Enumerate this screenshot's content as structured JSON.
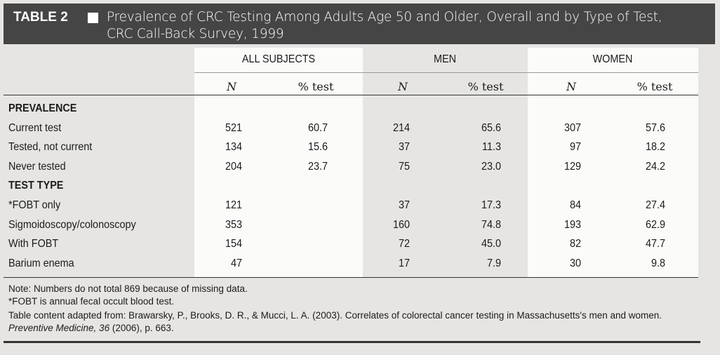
{
  "header": {
    "label": "TABLE 2",
    "title_lines": [
      "Prevalence of CRC Testing Among Adults Age 50 and Older, Overall and by Type of Test,",
      "CRC Call-Back Survey, 1999"
    ]
  },
  "table": {
    "groups": [
      "ALL SUBJECTS",
      "MEN",
      "WOMEN"
    ],
    "subheaders": [
      "N",
      "% test",
      "N",
      "% test",
      "N",
      "% test"
    ],
    "sections": [
      {
        "title": "PREVALENCE",
        "rows": [
          {
            "label": "Current test",
            "values": [
              "521",
              "60.7",
              "214",
              "65.6",
              "307",
              "57.6"
            ]
          },
          {
            "label": "Tested, not current",
            "values": [
              "134",
              "15.6",
              "37",
              "11.3",
              "97",
              "18.2"
            ]
          },
          {
            "label": "Never tested",
            "values": [
              "204",
              "23.7",
              "75",
              "23.0",
              "129",
              "24.2"
            ]
          }
        ]
      },
      {
        "title": "TEST TYPE",
        "rows": [
          {
            "label": "*FOBT only",
            "values": [
              "121",
              null,
              "37",
              "17.3",
              "84",
              "27.4"
            ]
          },
          {
            "label": "Sigmoidoscopy/colonoscopy",
            "values": [
              "353",
              null,
              "160",
              "74.8",
              "193",
              "62.9"
            ]
          },
          {
            "label": "With FOBT",
            "values": [
              "154",
              null,
              "72",
              "45.0",
              "82",
              "47.7"
            ]
          },
          {
            "label": "Barium enema",
            "values": [
              "47",
              null,
              "17",
              "7.9",
              "30",
              "9.8"
            ]
          }
        ]
      }
    ]
  },
  "notes": [
    {
      "parts": [
        {
          "text": "Note: Numbers do not total 869 because of missing data."
        }
      ]
    },
    {
      "parts": [
        {
          "text": "*FOBT is annual fecal occult blood test."
        }
      ]
    },
    {
      "parts": [
        {
          "text": "Table content adapted from: Brawarsky, P., Brooks, D. R., & Mucci, L. A. (2003). Correlates of colorectal cancer testing in Massachusetts's men and women. "
        },
        {
          "text": "Preventive Medicine, 36",
          "italic": true
        },
        {
          "text": " (2006), p. 663."
        }
      ]
    }
  ]
}
